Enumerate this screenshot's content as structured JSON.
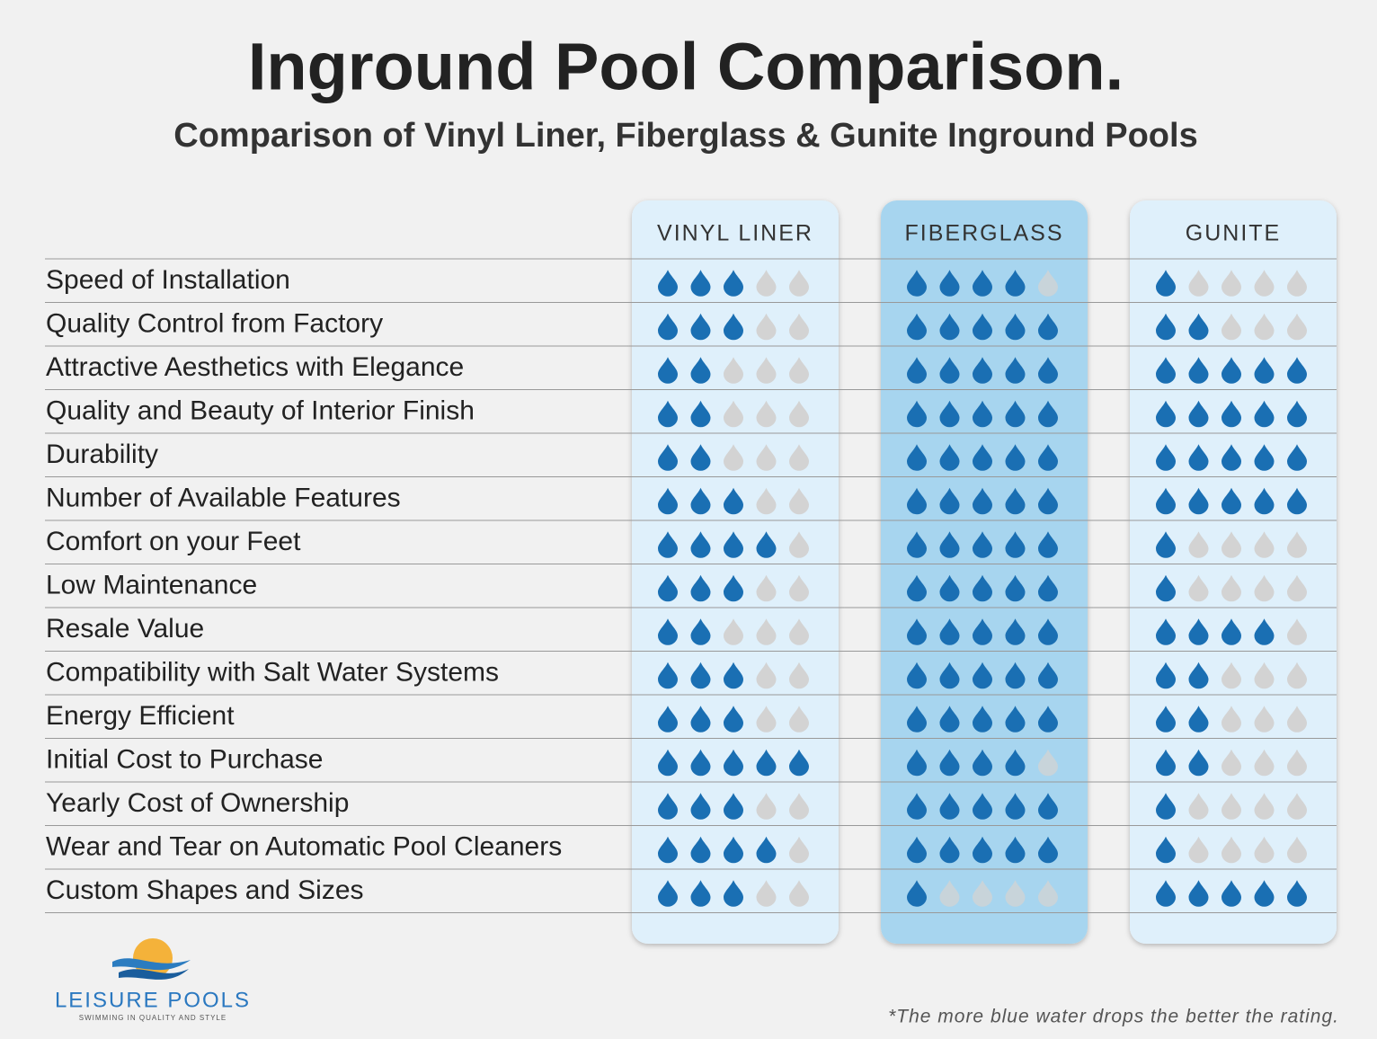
{
  "header": {
    "title": "Inground Pool Comparison.",
    "subtitle": "Comparison of Vinyl Liner, Fiberglass & Gunite Inground Pools"
  },
  "table": {
    "columns": [
      "VINYL LINER",
      "FIBERGLASS",
      "GUNITE"
    ],
    "max_rating": 5,
    "colors": {
      "filled": "#1a6fb3",
      "empty": "#d3d3d3"
    },
    "rows": [
      {
        "label": "Speed of Installation",
        "ratings": [
          3,
          4,
          1
        ]
      },
      {
        "label": "Quality Control from Factory",
        "ratings": [
          3,
          5,
          2
        ]
      },
      {
        "label": "Attractive Aesthetics with Elegance",
        "ratings": [
          2,
          5,
          5
        ]
      },
      {
        "label": "Quality and Beauty of Interior Finish",
        "ratings": [
          2,
          5,
          5
        ]
      },
      {
        "label": "Durability",
        "ratings": [
          2,
          5,
          5
        ]
      },
      {
        "label": "Number of Available Features",
        "ratings": [
          3,
          5,
          5
        ]
      },
      {
        "label": "Comfort on your Feet",
        "ratings": [
          4,
          5,
          1
        ]
      },
      {
        "label": "Low Maintenance",
        "ratings": [
          3,
          5,
          1
        ]
      },
      {
        "label": "Resale Value",
        "ratings": [
          2,
          5,
          4
        ]
      },
      {
        "label": "Compatibility with Salt Water Systems",
        "ratings": [
          3,
          5,
          2
        ]
      },
      {
        "label": "Energy Efficient",
        "ratings": [
          3,
          5,
          2
        ]
      },
      {
        "label": "Initial Cost to Purchase",
        "ratings": [
          5,
          4,
          2
        ]
      },
      {
        "label": "Yearly Cost of Ownership",
        "ratings": [
          3,
          5,
          1
        ]
      },
      {
        "label": "Wear and Tear on Automatic Pool Cleaners",
        "ratings": [
          4,
          5,
          1
        ]
      },
      {
        "label": "Custom Shapes and Sizes",
        "ratings": [
          3,
          1,
          5
        ]
      }
    ]
  },
  "logo": {
    "name": "LEISURE POOLS",
    "tagline": "SWIMMING IN QUALITY AND STYLE"
  },
  "footnote": "*The more blue water drops the better the rating."
}
